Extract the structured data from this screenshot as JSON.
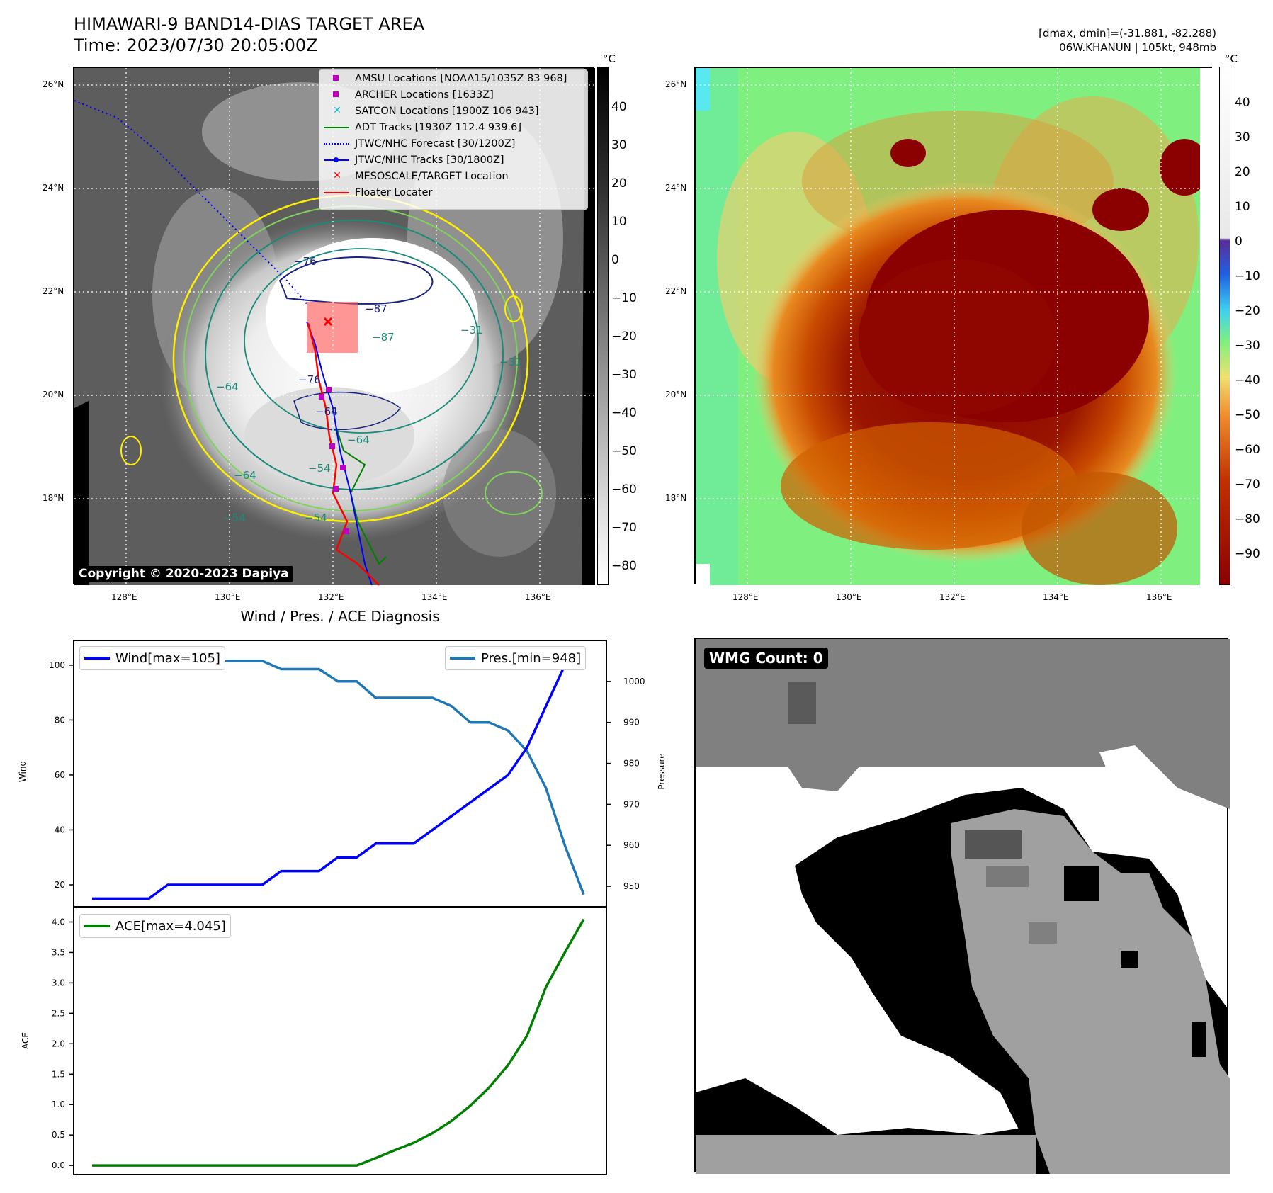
{
  "header": {
    "title_line1": "HIMAWARI-9 BAND14-DIAS TARGET AREA",
    "title_line2": "Time: 2023/07/30 20:05:00Z",
    "dmax_line": "[dmax, dmin]=(-31.881, -82.288)",
    "storm_line": "06W.KHANUN | 105kt, 948mb"
  },
  "map": {
    "lat_labels": [
      "26°N",
      "24°N",
      "22°N",
      "20°N",
      "18°N"
    ],
    "lon_labels": [
      "128°E",
      "130°E",
      "132°E",
      "134°E",
      "136°E"
    ],
    "copyright": "Copyright © 2020-2023 Dapiya",
    "colorbar_unit": "°C",
    "gray_colorbar_ticks": [
      "40",
      "30",
      "20",
      "10",
      "0",
      "−10",
      "−20",
      "−30",
      "−40",
      "−50",
      "−60",
      "−70",
      "−80"
    ],
    "color_colorbar_ticks": [
      "40",
      "30",
      "20",
      "10",
      "0",
      "−10",
      "−20",
      "−30",
      "−40",
      "−50",
      "−60",
      "−70",
      "−80",
      "−90"
    ],
    "contour_labels": [
      "−76",
      "−87",
      "−76",
      "−64",
      "−64",
      "−54",
      "−64",
      "−54",
      "−64",
      "−54",
      "−31",
      "−31",
      "−87"
    ],
    "colors": {
      "yellow": "#ffee00",
      "lightgreen": "#7fd35a",
      "teal": "#1a8a7a",
      "navy": "#1a237e",
      "red": "#ff0000",
      "magenta": "#c000c0"
    }
  },
  "legend": {
    "items": [
      {
        "label": "AMSU Locations [NOAA15/1035Z 83 968]",
        "icon": "magenta-square"
      },
      {
        "label": "ARCHER Locations [1633Z]",
        "icon": "magenta-square"
      },
      {
        "label": "SATCON Locations [1900Z 106 943]",
        "icon": "cyan-x"
      },
      {
        "label": "ADT Tracks [1930Z 112.4 939.6]",
        "icon": "green-line"
      },
      {
        "label": "JTWC/NHC Forecast [30/1200Z]",
        "icon": "blue-dotted-line"
      },
      {
        "label": "JTWC/NHC Tracks [30/1800Z]",
        "icon": "blue-line-dot"
      },
      {
        "label": "MESOSCALE/TARGET Location",
        "icon": "red-x"
      },
      {
        "label": "Floater Locater",
        "icon": "red-line"
      }
    ]
  },
  "diagnosis": {
    "title": "Wind / Pres. / ACE Diagnosis",
    "wind_legend": "Wind[max=105]",
    "pres_legend": "Pres.[min=948]",
    "ace_legend": "ACE[max=4.045]",
    "wind_ylabel": "Wind",
    "pres_ylabel": "Pressure",
    "ace_ylabel": "ACE"
  },
  "wmg": {
    "label": "WMG Count: 0"
  },
  "chart_data": [
    {
      "type": "line",
      "title": "Wind / Pres. / ACE Diagnosis",
      "ylabel": "Wind",
      "ylim": [
        12,
        109
      ],
      "yticks": [
        20,
        40,
        60,
        80,
        100
      ],
      "series": [
        {
          "name": "Wind[max=105]",
          "color": "#0000ff",
          "values": [
            15,
            15,
            15,
            15,
            20,
            20,
            20,
            20,
            20,
            20,
            25,
            25,
            25,
            30,
            30,
            35,
            35,
            35,
            40,
            45,
            50,
            55,
            60,
            70,
            85,
            100,
            105
          ]
        }
      ]
    },
    {
      "type": "line",
      "ylabel": "Pressure",
      "ylim": [
        945,
        1010
      ],
      "yticks": [
        950,
        960,
        970,
        980,
        990,
        1000
      ],
      "series": [
        {
          "name": "Pres.[min=948]",
          "color": "#1f77b4",
          "values": [
            1006,
            1006,
            1006,
            1006,
            1007,
            1007,
            1007,
            1005,
            1005,
            1005,
            1003,
            1003,
            1003,
            1000,
            1000,
            996,
            996,
            996,
            996,
            994,
            990,
            990,
            988,
            983,
            974,
            960,
            948
          ]
        }
      ]
    },
    {
      "type": "line",
      "ylabel": "ACE",
      "ylim": [
        -0.15,
        4.25
      ],
      "yticks": [
        0.0,
        0.5,
        1.0,
        1.5,
        2.0,
        2.5,
        3.0,
        3.5,
        4.0
      ],
      "series": [
        {
          "name": "ACE[max=4.045]",
          "color": "#008000",
          "values": [
            0,
            0,
            0,
            0,
            0,
            0,
            0,
            0,
            0,
            0,
            0,
            0,
            0,
            0,
            0,
            0.12,
            0.25,
            0.37,
            0.53,
            0.73,
            0.98,
            1.28,
            1.65,
            2.13,
            2.93,
            3.5,
            4.045
          ]
        }
      ]
    }
  ]
}
